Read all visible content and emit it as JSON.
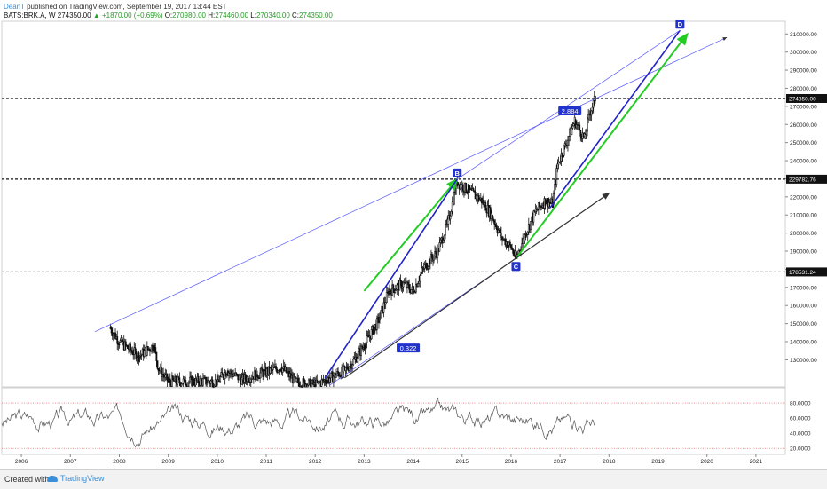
{
  "header": {
    "author": "DeanT",
    "published": " published on TradingView.com, September 19, 2017 13:44 EST",
    "symbol": "BATS:BRK.A, W",
    "last": "274350.00",
    "change": "▲ +1870.00 (+0.69%)",
    "ohlc": {
      "o_label": "O:",
      "o": "270980.00",
      "h_label": "H:",
      "h": "274460.00",
      "l_label": "L:",
      "l": "270340.00",
      "c_label": "C:",
      "c": "274350.00"
    }
  },
  "footer": {
    "created_with": "Created with",
    "logo_text": "TradingView"
  },
  "colors": {
    "green": "#22cc22",
    "blue": "#2222cc",
    "thin_blue": "#5b5bff",
    "label_bg": "#2233cc",
    "candle": "#111111",
    "rsi": "#555555"
  },
  "chart_data": {
    "type": "candlestick-with-rsi",
    "symbol": "BATS:BRK.A",
    "interval": "W",
    "x_range": [
      2005.6,
      2021.6
    ],
    "y_range": [
      115000,
      317000
    ],
    "x_ticks": [
      "2006",
      "2007",
      "2008",
      "2009",
      "2010",
      "2011",
      "2012",
      "2013",
      "2014",
      "2015",
      "2016",
      "2017",
      "2018",
      "2019",
      "2020",
      "2021"
    ],
    "y_ticks": [
      "130000.00",
      "140000.00",
      "150000.00",
      "160000.00",
      "170000.00",
      "180000.00",
      "190000.00",
      "200000.00",
      "210000.00",
      "220000.00",
      "230000.00",
      "240000.00",
      "250000.00",
      "260000.00",
      "270000.00",
      "280000.00",
      "290000.00",
      "300000.00",
      "310000.00"
    ],
    "price_levels": [
      {
        "value": 274350,
        "label": "274350.00",
        "style": "dashed"
      },
      {
        "value": 229782.76,
        "label": "229782.76",
        "style": "dashed"
      },
      {
        "value": 178531.24,
        "label": "178531.24",
        "style": "dashed"
      }
    ],
    "points": [
      {
        "label": "B",
        "x": 2014.9,
        "y": 229800
      },
      {
        "label": "C",
        "x": 2016.1,
        "y": 186000
      },
      {
        "label": "D",
        "x": 2019.45,
        "y": 312000
      }
    ],
    "ratio_labels": [
      {
        "text": "2.884",
        "x": 2017.2,
        "y": 267500
      },
      {
        "text": "0.322",
        "x": 2013.9,
        "y": 136500
      }
    ],
    "close_series": [
      [
        2007.8,
        148000
      ],
      [
        2008.0,
        140000
      ],
      [
        2008.4,
        132000
      ],
      [
        2008.7,
        138000
      ],
      [
        2008.8,
        125000
      ],
      [
        2009.0,
        118000
      ],
      [
        2010.0,
        118000
      ],
      [
        2010.2,
        124000
      ],
      [
        2010.5,
        119000
      ],
      [
        2010.8,
        122000
      ],
      [
        2011.1,
        124000
      ],
      [
        2011.3,
        126000
      ],
      [
        2011.6,
        118000
      ],
      [
        2012.0,
        116000
      ],
      [
        2012.3,
        120000
      ],
      [
        2012.6,
        124000
      ],
      [
        2012.8,
        130000
      ],
      [
        2013.0,
        138000
      ],
      [
        2013.3,
        152000
      ],
      [
        2013.5,
        168000
      ],
      [
        2013.8,
        172000
      ],
      [
        2014.0,
        168000
      ],
      [
        2014.2,
        180000
      ],
      [
        2014.5,
        190000
      ],
      [
        2014.7,
        205000
      ],
      [
        2014.9,
        228000
      ],
      [
        2015.1,
        224000
      ],
      [
        2015.4,
        218000
      ],
      [
        2015.6,
        210000
      ],
      [
        2015.8,
        198000
      ],
      [
        2016.0,
        192000
      ],
      [
        2016.1,
        186000
      ],
      [
        2016.3,
        200000
      ],
      [
        2016.5,
        212000
      ],
      [
        2016.7,
        218000
      ],
      [
        2016.85,
        216000
      ],
      [
        2016.95,
        238000
      ],
      [
        2017.1,
        248000
      ],
      [
        2017.3,
        262000
      ],
      [
        2017.5,
        252000
      ],
      [
        2017.6,
        266000
      ],
      [
        2017.72,
        274350
      ]
    ],
    "rsi": {
      "levels": [
        {
          "value": 80,
          "label": "80.0000"
        },
        {
          "value": 20,
          "label": "20.0000"
        }
      ],
      "y_ticks": [
        "80.0000",
        "60.0000",
        "40.0000",
        "20.0000"
      ],
      "y_range": [
        12,
        100
      ]
    },
    "lines": [
      {
        "name": "trendline-thin-black",
        "from": [
          2007.5,
          145500
        ],
        "to": [
          2020.4,
          308000
        ],
        "arrow": true
      },
      {
        "name": "green-leg-ab",
        "from": [
          2013.0,
          168000
        ],
        "to": [
          2014.9,
          229800
        ],
        "arrow": true
      },
      {
        "name": "blue-leg-ab",
        "from": [
          2012.2,
          120000
        ],
        "to": [
          2014.9,
          229800
        ]
      },
      {
        "name": "green-leg-cd",
        "from": [
          2016.1,
          186000
        ],
        "to": [
          2019.6,
          310000
        ],
        "arrow": true
      },
      {
        "name": "blue-leg-cd",
        "from": [
          2016.8,
          214000
        ],
        "to": [
          2019.45,
          312000
        ]
      },
      {
        "name": "thin-blue-bd",
        "from": [
          2014.9,
          229800
        ],
        "to": [
          2019.45,
          312000
        ]
      },
      {
        "name": "thin-blue-ac",
        "from": [
          2012.3,
          116000
        ],
        "to": [
          2016.1,
          186000
        ]
      },
      {
        "name": "black-channel",
        "from": [
          2012.6,
          120000
        ],
        "to": [
          2018.0,
          222000
        ],
        "arrow": true
      }
    ]
  }
}
